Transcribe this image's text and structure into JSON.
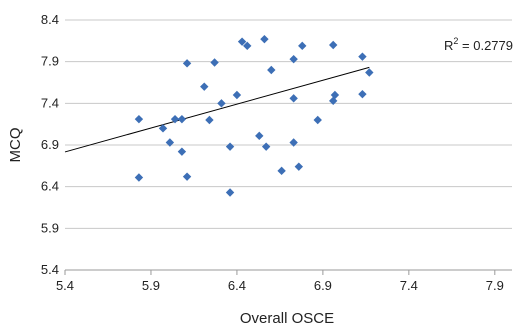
{
  "chart_data": {
    "type": "scatter",
    "xlabel": "Overall OSCE",
    "ylabel": "MCQ",
    "xlim": [
      5.4,
      8.0
    ],
    "ylim": [
      5.4,
      8.4
    ],
    "x_ticks": [
      "5.4",
      "5.9",
      "6.4",
      "6.9",
      "7.4",
      "7.9"
    ],
    "y_ticks": [
      "5.4",
      "5.9",
      "6.4",
      "6.9",
      "7.4",
      "7.9",
      "8.4"
    ],
    "grid": "horizontal",
    "marker_color": "#3d6fb6",
    "annotation": {
      "prefix": "R",
      "superscript": "2",
      "suffix": " = 0.2779"
    },
    "trendline": {
      "slope": 0.5735,
      "intercept": 3.72
    },
    "series": [
      {
        "points": [
          {
            "x": 5.83,
            "y": 7.21
          },
          {
            "x": 5.83,
            "y": 6.51
          },
          {
            "x": 5.97,
            "y": 7.1
          },
          {
            "x": 6.01,
            "y": 6.93
          },
          {
            "x": 6.04,
            "y": 7.21
          },
          {
            "x": 6.08,
            "y": 7.21
          },
          {
            "x": 6.08,
            "y": 6.82
          },
          {
            "x": 6.11,
            "y": 7.88
          },
          {
            "x": 6.11,
            "y": 6.52
          },
          {
            "x": 6.21,
            "y": 7.6
          },
          {
            "x": 6.24,
            "y": 7.2
          },
          {
            "x": 6.27,
            "y": 7.89
          },
          {
            "x": 6.31,
            "y": 7.4
          },
          {
            "x": 6.36,
            "y": 6.88
          },
          {
            "x": 6.36,
            "y": 6.33
          },
          {
            "x": 6.4,
            "y": 7.5
          },
          {
            "x": 6.43,
            "y": 8.14
          },
          {
            "x": 6.46,
            "y": 8.09
          },
          {
            "x": 6.53,
            "y": 7.01
          },
          {
            "x": 6.56,
            "y": 8.17
          },
          {
            "x": 6.57,
            "y": 6.88
          },
          {
            "x": 6.6,
            "y": 7.8
          },
          {
            "x": 6.66,
            "y": 6.59
          },
          {
            "x": 6.73,
            "y": 7.93
          },
          {
            "x": 6.73,
            "y": 7.46
          },
          {
            "x": 6.73,
            "y": 6.93
          },
          {
            "x": 6.76,
            "y": 6.64
          },
          {
            "x": 6.78,
            "y": 8.09
          },
          {
            "x": 6.87,
            "y": 7.2
          },
          {
            "x": 6.96,
            "y": 8.1
          },
          {
            "x": 6.96,
            "y": 7.43
          },
          {
            "x": 6.97,
            "y": 7.5
          },
          {
            "x": 7.13,
            "y": 7.96
          },
          {
            "x": 7.13,
            "y": 7.51
          },
          {
            "x": 7.17,
            "y": 7.77
          }
        ]
      }
    ]
  }
}
